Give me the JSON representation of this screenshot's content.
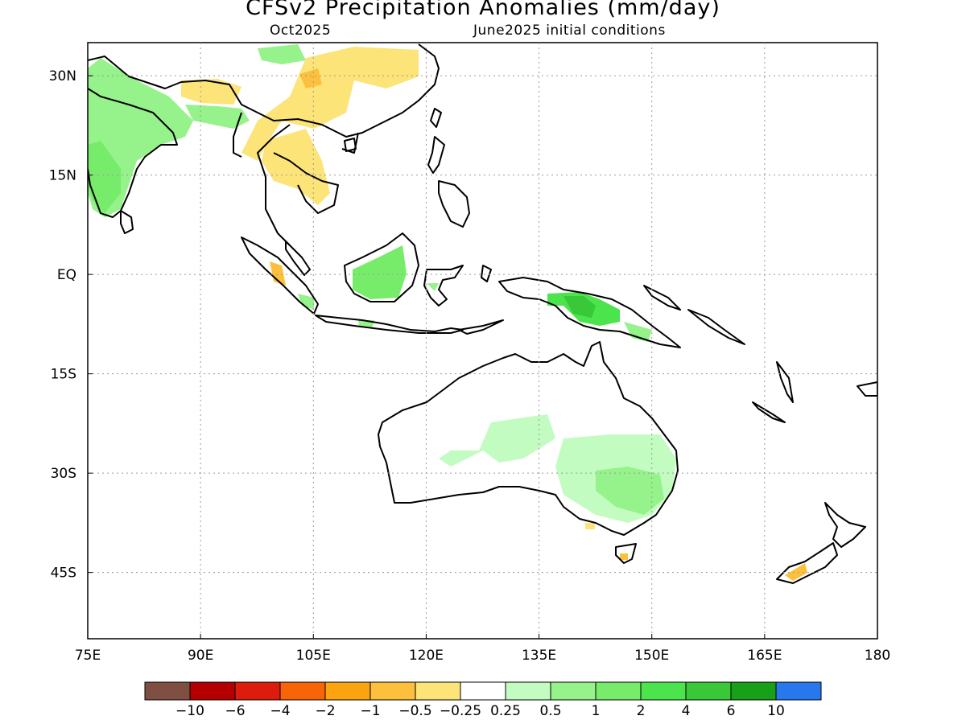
{
  "title": "CFSv2 Precipitation Anomalies (mm/day)",
  "valid_month": "Oct2025",
  "initial_conditions": "June2025 initial conditions",
  "lat_labels": [
    "30N",
    "15N",
    "EQ",
    "15S",
    "30S",
    "45S"
  ],
  "lat_values": [
    30,
    15,
    0,
    -15,
    -30,
    -45
  ],
  "lon_labels": [
    "75E",
    "90E",
    "105E",
    "120E",
    "135E",
    "150E",
    "165E",
    "180"
  ],
  "lon_values": [
    75,
    90,
    105,
    120,
    135,
    150,
    165,
    180
  ],
  "map_extent": {
    "lon": [
      75,
      180
    ],
    "lat": [
      -55,
      35
    ]
  },
  "colorbar": {
    "colors": [
      "#7f4f44",
      "#b40000",
      "#dc1c0c",
      "#f86408",
      "#fca410",
      "#fcc03c",
      "#fce478",
      "#ffffff",
      "#c2fcc0",
      "#96f28a",
      "#76ec6a",
      "#4ce44c",
      "#38c838",
      "#18a018",
      "#2678ec"
    ],
    "tick_labels": [
      "-10",
      "-6",
      "-4",
      "-2",
      "-1",
      "-0.5",
      "-0.25",
      "0.25",
      "0.5",
      "1",
      "2",
      "4",
      "6",
      "10"
    ]
  }
}
